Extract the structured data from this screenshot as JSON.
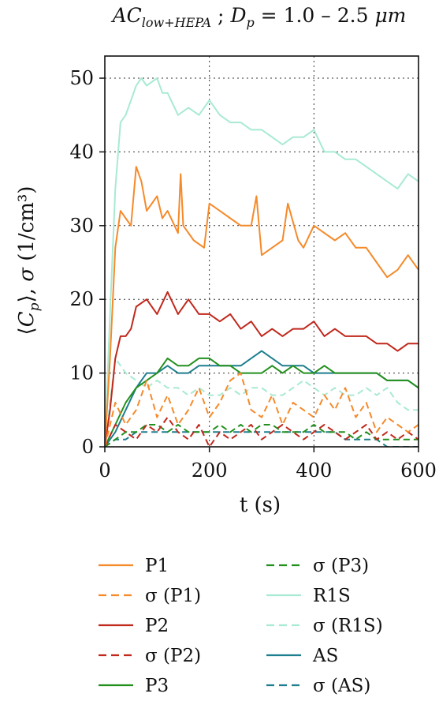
{
  "chart_data": {
    "type": "line",
    "title_parts": {
      "ac": "AC",
      "ac_sub": "low+HEPA",
      "sep": " ; ",
      "dp": "D",
      "dp_sub": "p",
      "range": " = 1.0 – 2.5 ",
      "unit": "μm"
    },
    "xlabel": "t (s)",
    "ylabel_parts": {
      "open": "⟨",
      "var": "C",
      "sub": "p",
      "close": "⟩, ",
      "sigma": "σ",
      "unit": " (1/cm³)"
    },
    "xlim": [
      0,
      600
    ],
    "ylim": [
      0,
      53
    ],
    "xticks": [
      0,
      200,
      400,
      600
    ],
    "yticks": [
      0,
      10,
      20,
      30,
      40,
      50
    ],
    "grid": true,
    "legend_position": "below-plot",
    "series": [
      {
        "name": "P1",
        "color": "#f58a2a",
        "style": "solid",
        "x": [
          0,
          10,
          20,
          30,
          40,
          50,
          60,
          70,
          80,
          100,
          110,
          120,
          140,
          145,
          150,
          170,
          190,
          200,
          220,
          240,
          260,
          280,
          290,
          300,
          320,
          340,
          350,
          370,
          380,
          400,
          420,
          440,
          460,
          480,
          500,
          520,
          540,
          560,
          580,
          600
        ],
        "y": [
          0,
          12,
          27,
          32,
          31,
          30,
          38,
          36,
          32,
          34,
          31,
          32,
          29,
          37,
          30,
          28,
          27,
          33,
          32,
          31,
          30,
          30,
          34,
          26,
          27,
          28,
          33,
          28,
          27,
          30,
          29,
          28,
          29,
          27,
          27,
          25,
          23,
          24,
          26,
          24
        ]
      },
      {
        "name": "σ (P1)",
        "color": "#f58a2a",
        "style": "dashed",
        "x": [
          0,
          20,
          40,
          60,
          80,
          100,
          120,
          140,
          160,
          180,
          200,
          220,
          240,
          260,
          280,
          300,
          320,
          340,
          360,
          380,
          400,
          420,
          440,
          460,
          480,
          500,
          520,
          540,
          560,
          580,
          600
        ],
        "y": [
          0,
          6,
          3,
          5,
          9,
          4,
          7,
          3,
          5,
          8,
          4,
          6,
          9,
          10,
          5,
          4,
          7,
          3,
          6,
          5,
          4,
          7,
          5,
          8,
          4,
          6,
          2,
          4,
          3,
          2,
          3
        ]
      },
      {
        "name": "P2",
        "color": "#c0281c",
        "style": "solid",
        "x": [
          0,
          10,
          20,
          30,
          40,
          50,
          60,
          80,
          100,
          120,
          140,
          160,
          180,
          200,
          220,
          240,
          260,
          280,
          300,
          320,
          340,
          360,
          380,
          400,
          420,
          440,
          460,
          480,
          500,
          520,
          540,
          560,
          580,
          600
        ],
        "y": [
          0,
          5,
          12,
          15,
          15,
          16,
          19,
          20,
          18,
          21,
          18,
          20,
          18,
          18,
          17,
          18,
          16,
          17,
          15,
          16,
          15,
          16,
          16,
          17,
          15,
          16,
          15,
          15,
          15,
          14,
          14,
          13,
          14,
          14
        ]
      },
      {
        "name": "σ (P2)",
        "color": "#c0281c",
        "style": "dashed",
        "x": [
          0,
          20,
          40,
          60,
          80,
          100,
          120,
          140,
          160,
          180,
          200,
          220,
          240,
          260,
          280,
          300,
          320,
          340,
          360,
          380,
          400,
          420,
          440,
          460,
          480,
          500,
          520,
          540,
          560,
          580,
          600
        ],
        "y": [
          0,
          3,
          2,
          1,
          3,
          2,
          4,
          2,
          1,
          3,
          0,
          2,
          1,
          2,
          3,
          1,
          2,
          3,
          2,
          1,
          2,
          3,
          2,
          1,
          2,
          3,
          1,
          2,
          1,
          2,
          1
        ]
      },
      {
        "name": "P3",
        "color": "#23901e",
        "style": "solid",
        "x": [
          0,
          20,
          40,
          60,
          80,
          100,
          120,
          140,
          160,
          180,
          200,
          220,
          240,
          260,
          280,
          300,
          320,
          340,
          360,
          380,
          400,
          420,
          440,
          460,
          480,
          500,
          520,
          540,
          560,
          580,
          600
        ],
        "y": [
          0,
          3,
          6,
          8,
          9,
          10,
          12,
          11,
          11,
          12,
          12,
          11,
          11,
          10,
          10,
          10,
          11,
          10,
          11,
          10,
          10,
          11,
          10,
          10,
          10,
          10,
          10,
          9,
          9,
          9,
          8
        ]
      },
      {
        "name": "σ (P3)",
        "color": "#23901e",
        "style": "dashed",
        "x": [
          0,
          20,
          40,
          60,
          80,
          100,
          120,
          140,
          160,
          180,
          200,
          220,
          240,
          260,
          280,
          300,
          320,
          340,
          360,
          380,
          400,
          420,
          440,
          460,
          480,
          500,
          520,
          540,
          560,
          580,
          600
        ],
        "y": [
          0,
          1,
          2,
          2,
          3,
          3,
          2,
          3,
          2,
          2,
          2,
          3,
          2,
          3,
          2,
          3,
          3,
          2,
          2,
          2,
          3,
          2,
          2,
          2,
          1,
          2,
          1,
          1,
          1,
          1,
          1
        ]
      },
      {
        "name": "R1S",
        "color": "#a8ead2",
        "style": "solid",
        "x": [
          0,
          10,
          20,
          30,
          40,
          50,
          60,
          70,
          80,
          100,
          110,
          120,
          140,
          160,
          180,
          200,
          220,
          240,
          260,
          280,
          300,
          320,
          340,
          360,
          380,
          400,
          420,
          440,
          460,
          480,
          500,
          520,
          540,
          560,
          580,
          600
        ],
        "y": [
          0,
          18,
          35,
          44,
          45,
          47,
          49,
          50,
          49,
          50,
          48,
          48,
          45,
          46,
          45,
          47,
          45,
          44,
          44,
          43,
          43,
          42,
          41,
          42,
          42,
          43,
          40,
          40,
          39,
          39,
          38,
          37,
          36,
          35,
          37,
          36
        ]
      },
      {
        "name": "σ (R1S)",
        "color": "#a8ead2",
        "style": "dashed",
        "x": [
          0,
          20,
          40,
          60,
          80,
          100,
          120,
          140,
          160,
          180,
          200,
          220,
          240,
          260,
          280,
          300,
          320,
          340,
          360,
          380,
          400,
          420,
          440,
          460,
          480,
          500,
          520,
          540,
          560,
          580,
          600
        ],
        "y": [
          0,
          12,
          10,
          9,
          8,
          9,
          8,
          8,
          7,
          8,
          7,
          7,
          8,
          7,
          8,
          8,
          7,
          7,
          8,
          9,
          8,
          7,
          8,
          7,
          7,
          8,
          7,
          8,
          6,
          5,
          5
        ]
      },
      {
        "name": "AS",
        "color": "#1e7e8e",
        "style": "solid",
        "x": [
          0,
          20,
          40,
          60,
          80,
          100,
          120,
          140,
          160,
          180,
          200,
          220,
          240,
          260,
          280,
          300,
          320,
          340,
          360,
          380,
          400,
          420,
          440,
          460,
          480,
          500,
          520,
          540,
          560,
          580,
          600
        ],
        "y": [
          0,
          2,
          5,
          8,
          10,
          10,
          11,
          10,
          10,
          11,
          11,
          11,
          11,
          11,
          12,
          13,
          12,
          11,
          11,
          11,
          10,
          10,
          10,
          10,
          10,
          10,
          10,
          9,
          9,
          9,
          8
        ]
      },
      {
        "name": "σ (AS)",
        "color": "#1e7e8e",
        "style": "dashed",
        "x": [
          0,
          20,
          40,
          60,
          80,
          100,
          120,
          140,
          160,
          180,
          200,
          220,
          240,
          260,
          280,
          300,
          320,
          340,
          360,
          380,
          400,
          420,
          440,
          460,
          480,
          500,
          520,
          540,
          560,
          580,
          600
        ],
        "y": [
          0,
          1,
          1,
          2,
          2,
          2,
          2,
          2,
          2,
          2,
          2,
          2,
          2,
          2,
          2,
          2,
          2,
          2,
          2,
          2,
          2,
          2,
          2,
          1,
          1,
          1,
          1,
          0,
          0,
          0,
          0
        ]
      }
    ]
  }
}
